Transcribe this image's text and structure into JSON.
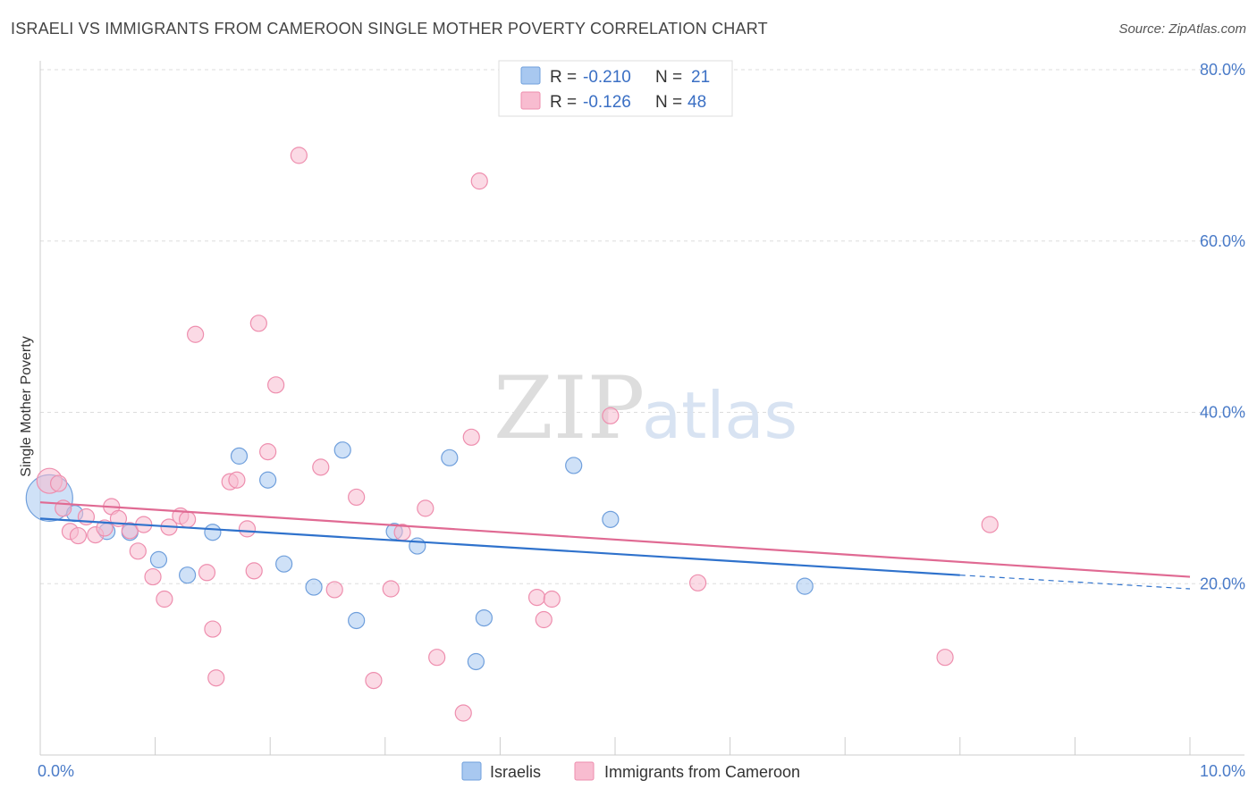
{
  "header": {
    "title": "ISRAELI VS IMMIGRANTS FROM CAMEROON SINGLE MOTHER POVERTY CORRELATION CHART",
    "source": "Source: ZipAtlas.com"
  },
  "watermark": {
    "zip": "ZIP",
    "atlas": "atlas"
  },
  "legend": {
    "rows": [
      {
        "r_label": "R =",
        "r_value": "-0.210",
        "n_label": "N =",
        "n_value": "21",
        "color": "#a8c8f0"
      },
      {
        "r_label": "R =",
        "r_value": "-0.126",
        "n_label": "N =",
        "n_value": "48",
        "color": "#f8bcd0"
      }
    ]
  },
  "bottom_legend": {
    "items": [
      {
        "label": "Israelis",
        "color": "#a8c8f0"
      },
      {
        "label": "Immigrants from Cameroon",
        "color": "#f8bcd0"
      }
    ]
  },
  "chart_data": {
    "type": "scatter",
    "title": "ISRAELI VS IMMIGRANTS FROM CAMEROON SINGLE MOTHER POVERTY CORRELATION CHART",
    "xlabel": "",
    "ylabel": "Single Mother Poverty",
    "xlim": [
      0,
      10
    ],
    "ylim": [
      0,
      80
    ],
    "x_ticks": [
      "0.0%",
      "10.0%"
    ],
    "y_ticks": [
      {
        "value": 20,
        "label": "20.0%"
      },
      {
        "value": 40,
        "label": "40.0%"
      },
      {
        "value": 60,
        "label": "60.0%"
      },
      {
        "value": 80,
        "label": "80.0%"
      }
    ],
    "grid": true,
    "legend_position": "top-center",
    "series": [
      {
        "name": "Israelis",
        "color": "#a8c8f0",
        "stroke": "#6f9fdc",
        "line_color": "#2f72cc",
        "trend": {
          "x0": 0,
          "y0": 27.6,
          "x1": 8.0,
          "y1": 21.0,
          "dash_to": 10,
          "dash_y": 19.4
        },
        "points": [
          [
            0.08,
            30.0,
            26
          ],
          [
            0.3,
            28.2,
            9
          ],
          [
            0.58,
            26.1,
            9
          ],
          [
            0.78,
            26.0,
            9
          ],
          [
            1.03,
            22.8,
            9
          ],
          [
            1.28,
            21.0,
            9
          ],
          [
            1.5,
            26.0,
            9
          ],
          [
            1.73,
            34.9,
            9
          ],
          [
            1.98,
            32.1,
            9
          ],
          [
            2.12,
            22.3,
            9
          ],
          [
            2.38,
            19.6,
            9
          ],
          [
            2.63,
            35.6,
            9
          ],
          [
            2.75,
            15.7,
            9
          ],
          [
            3.08,
            26.1,
            9
          ],
          [
            3.28,
            24.4,
            9
          ],
          [
            3.56,
            34.7,
            9
          ],
          [
            3.79,
            10.9,
            9
          ],
          [
            3.86,
            16.0,
            9
          ],
          [
            4.64,
            33.8,
            9
          ],
          [
            4.96,
            27.5,
            9
          ],
          [
            6.65,
            19.7,
            9
          ]
        ]
      },
      {
        "name": "Immigrants from Cameroon",
        "color": "#f8bcd0",
        "stroke": "#ee8eae",
        "line_color": "#e06a93",
        "trend": {
          "x0": 0,
          "y0": 29.5,
          "x1": 10.0,
          "y1": 20.8
        },
        "points": [
          [
            0.08,
            32.0,
            14
          ],
          [
            0.16,
            31.7,
            9
          ],
          [
            0.2,
            28.8,
            9
          ],
          [
            0.26,
            26.1,
            9
          ],
          [
            0.33,
            25.6,
            9
          ],
          [
            0.4,
            27.8,
            9
          ],
          [
            0.48,
            25.7,
            9
          ],
          [
            0.56,
            26.5,
            9
          ],
          [
            0.62,
            29.0,
            9
          ],
          [
            0.68,
            27.6,
            9
          ],
          [
            0.78,
            26.2,
            9
          ],
          [
            0.85,
            23.8,
            9
          ],
          [
            0.9,
            26.9,
            9
          ],
          [
            0.98,
            20.8,
            9
          ],
          [
            1.08,
            18.2,
            9
          ],
          [
            1.12,
            26.6,
            9
          ],
          [
            1.22,
            27.9,
            9
          ],
          [
            1.28,
            27.5,
            9
          ],
          [
            1.35,
            49.1,
            9
          ],
          [
            1.45,
            21.3,
            9
          ],
          [
            1.5,
            14.7,
            9
          ],
          [
            1.53,
            9.0,
            9
          ],
          [
            1.65,
            31.9,
            9
          ],
          [
            1.71,
            32.1,
            9
          ],
          [
            1.8,
            26.4,
            9
          ],
          [
            1.86,
            21.5,
            9
          ],
          [
            1.9,
            50.4,
            9
          ],
          [
            1.98,
            35.4,
            9
          ],
          [
            2.05,
            43.2,
            9
          ],
          [
            2.25,
            70.0,
            9
          ],
          [
            2.44,
            33.6,
            9
          ],
          [
            2.56,
            19.3,
            9
          ],
          [
            2.75,
            30.1,
            9
          ],
          [
            2.9,
            8.7,
            9
          ],
          [
            3.05,
            19.4,
            9
          ],
          [
            3.15,
            26.0,
            9
          ],
          [
            3.35,
            28.8,
            9
          ],
          [
            3.45,
            11.4,
            9
          ],
          [
            3.68,
            4.9,
            9
          ],
          [
            3.75,
            37.1,
            9
          ],
          [
            3.82,
            67.0,
            9
          ],
          [
            4.32,
            18.4,
            9
          ],
          [
            4.38,
            15.8,
            9
          ],
          [
            4.45,
            18.2,
            9
          ],
          [
            4.96,
            39.6,
            9
          ],
          [
            5.72,
            20.1,
            9
          ],
          [
            7.87,
            11.4,
            9
          ],
          [
            8.26,
            26.9,
            9
          ]
        ]
      }
    ]
  }
}
